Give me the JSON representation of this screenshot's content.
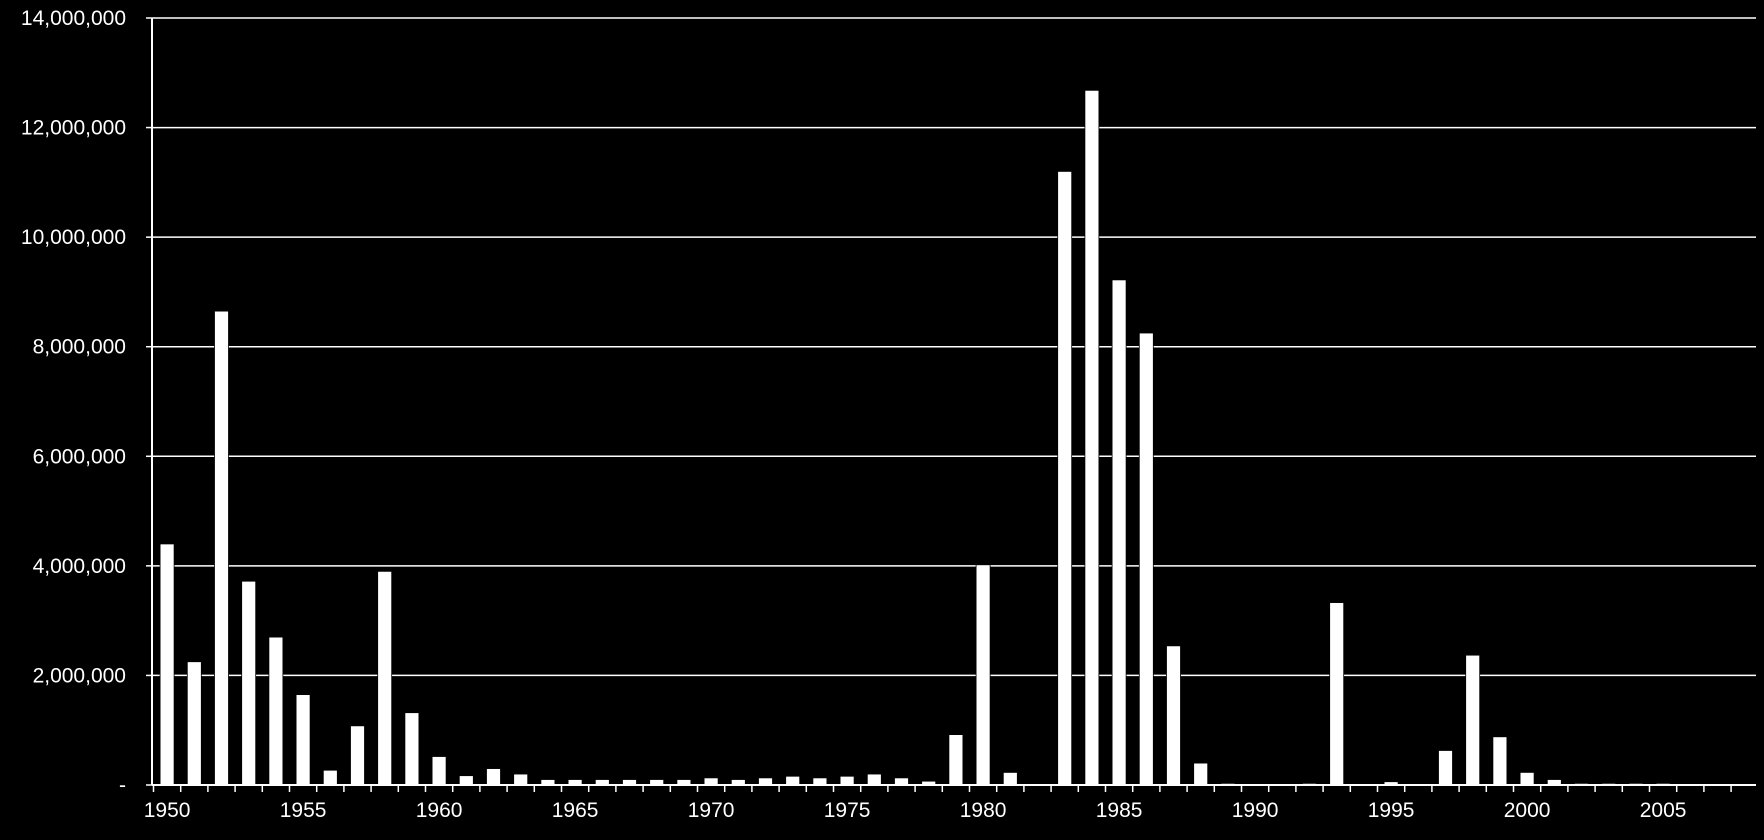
{
  "colors": {
    "background": "#000000",
    "bar_fill": "#ffffff",
    "bar_stroke": "#000000",
    "grid": "#ffffff",
    "axis": "#ffffff",
    "text": "#ffffff"
  },
  "chart_data": {
    "type": "bar",
    "title": "",
    "xlabel": "",
    "ylabel": "",
    "ylim": [
      0,
      14000000
    ],
    "grid": true,
    "legend": "none",
    "y_ticks": [
      {
        "value": 0,
        "label": "-"
      },
      {
        "value": 2000000,
        "label": "2,000,000"
      },
      {
        "value": 4000000,
        "label": "4,000,000"
      },
      {
        "value": 6000000,
        "label": "6,000,000"
      },
      {
        "value": 8000000,
        "label": "8,000,000"
      },
      {
        "value": 10000000,
        "label": "10,000,000"
      },
      {
        "value": 12000000,
        "label": "12,000,000"
      },
      {
        "value": 14000000,
        "label": "14,000,000"
      }
    ],
    "x_tick_labels": [
      "1950",
      "1955",
      "1960",
      "1965",
      "1970",
      "1975",
      "1980",
      "1985",
      "1990",
      "1995",
      "2000",
      "2005"
    ],
    "categories": [
      1950,
      1951,
      1952,
      1953,
      1954,
      1955,
      1956,
      1957,
      1958,
      1959,
      1960,
      1961,
      1962,
      1963,
      1964,
      1965,
      1966,
      1967,
      1968,
      1969,
      1970,
      1971,
      1972,
      1973,
      1974,
      1975,
      1976,
      1977,
      1978,
      1979,
      1980,
      1981,
      1982,
      1983,
      1984,
      1985,
      1986,
      1987,
      1988,
      1989,
      1990,
      1991,
      1992,
      1993,
      1994,
      1995,
      1996,
      1997,
      1998,
      1999,
      2000,
      2001,
      2002,
      2003,
      2004,
      2005,
      2006,
      2007
    ],
    "values": [
      4400000,
      2250000,
      8650000,
      3720000,
      2700000,
      1650000,
      270000,
      1080000,
      3900000,
      1320000,
      520000,
      170000,
      300000,
      200000,
      100000,
      100000,
      100000,
      100000,
      100000,
      100000,
      130000,
      100000,
      130000,
      160000,
      130000,
      160000,
      200000,
      130000,
      70000,
      920000,
      4020000,
      230000,
      0,
      11200000,
      12680000,
      9220000,
      8250000,
      2540000,
      400000,
      30000,
      0,
      0,
      30000,
      3330000,
      0,
      60000,
      0,
      630000,
      2370000,
      880000,
      230000,
      100000,
      30000,
      30000,
      30000,
      30000,
      0,
      0
    ]
  }
}
